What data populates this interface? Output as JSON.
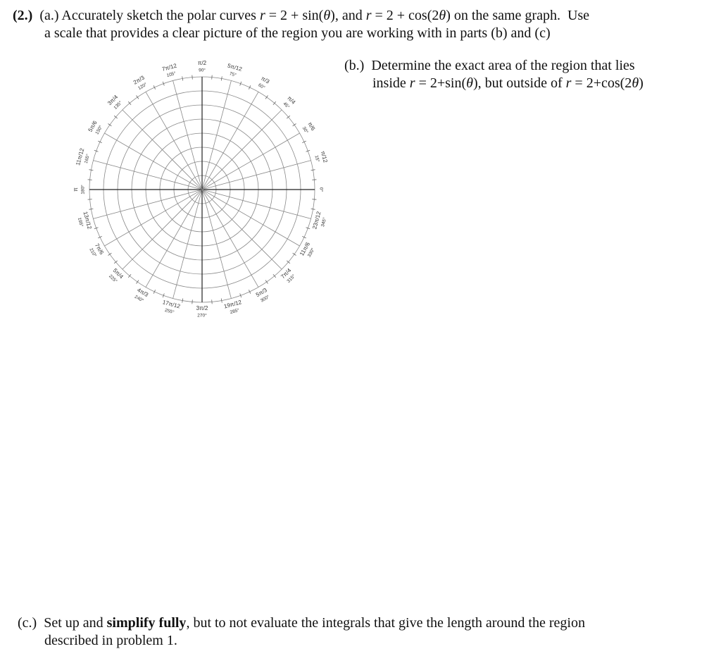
{
  "problem": {
    "lines_a": [
      [
        {
          "t": "(2.)",
          "s": "b"
        },
        {
          "t": "  (a.) Accurately sketch the polar curves "
        },
        {
          "t": "r",
          "s": "i"
        },
        {
          "t": " = 2 + sin("
        },
        {
          "t": "θ",
          "s": "i"
        },
        {
          "t": "), and "
        },
        {
          "t": "r",
          "s": "i"
        },
        {
          "t": " = 2 + cos(2"
        },
        {
          "t": "θ",
          "s": "i"
        },
        {
          "t": ") on the same graph.  Use"
        }
      ],
      [
        {
          "t": "a scale that provides a clear picture of the region you are working with in parts (b) and (c)"
        }
      ]
    ],
    "lines_b": [
      [
        {
          "t": "(b.)  Determine the exact area of the region that lies"
        }
      ],
      [
        {
          "t": "inside "
        },
        {
          "t": "r",
          "s": "i"
        },
        {
          "t": " = 2+sin("
        },
        {
          "t": "θ",
          "s": "i"
        },
        {
          "t": "), but outside of "
        },
        {
          "t": "r",
          "s": "i"
        },
        {
          "t": " = 2+cos(2"
        },
        {
          "t": "θ",
          "s": "i"
        },
        {
          "t": ")"
        }
      ]
    ],
    "lines_c": [
      [
        {
          "t": "(c.)  Set up and "
        },
        {
          "t": "simplify fully",
          "s": "b"
        },
        {
          "t": ", but to not evaluate the integrals that give the length around the region"
        }
      ],
      [
        {
          "t": "described in problem 1."
        }
      ]
    ]
  },
  "polar_grid": {
    "rings": 8,
    "spoke_step_deg": 15,
    "tick_step_deg": 5,
    "labels": [
      {
        "deg": 0,
        "rad": "0°",
        "degl": ""
      },
      {
        "deg": 15,
        "rad": "π/12",
        "degl": "15°"
      },
      {
        "deg": 30,
        "rad": "π/6",
        "degl": "30°"
      },
      {
        "deg": 45,
        "rad": "π/4",
        "degl": "45°"
      },
      {
        "deg": 60,
        "rad": "π/3",
        "degl": "60°"
      },
      {
        "deg": 75,
        "rad": "5π/12",
        "degl": "75°"
      },
      {
        "deg": 90,
        "rad": "π/2",
        "degl": "90°"
      },
      {
        "deg": 105,
        "rad": "7π/12",
        "degl": "105°"
      },
      {
        "deg": 120,
        "rad": "2π/3",
        "degl": "120°"
      },
      {
        "deg": 135,
        "rad": "3π/4",
        "degl": "135°"
      },
      {
        "deg": 150,
        "rad": "5π/6",
        "degl": "150°"
      },
      {
        "deg": 165,
        "rad": "11π/12",
        "degl": "165°"
      },
      {
        "deg": 180,
        "rad": "π",
        "degl": "180°"
      },
      {
        "deg": 195,
        "rad": "13π/12",
        "degl": "195°"
      },
      {
        "deg": 210,
        "rad": "7π/6",
        "degl": "210°"
      },
      {
        "deg": 225,
        "rad": "5π/4",
        "degl": "225°"
      },
      {
        "deg": 240,
        "rad": "4π/3",
        "degl": "240°"
      },
      {
        "deg": 255,
        "rad": "17π/12",
        "degl": "255°"
      },
      {
        "deg": 270,
        "rad": "3π/2",
        "degl": "270°"
      },
      {
        "deg": 285,
        "rad": "19π/12",
        "degl": "285°"
      },
      {
        "deg": 300,
        "rad": "5π/3",
        "degl": "300°"
      },
      {
        "deg": 315,
        "rad": "7π/4",
        "degl": "315°"
      },
      {
        "deg": 330,
        "rad": "11π/6",
        "degl": "330°"
      },
      {
        "deg": 345,
        "rad": "23π/12",
        "degl": "345°"
      }
    ]
  }
}
